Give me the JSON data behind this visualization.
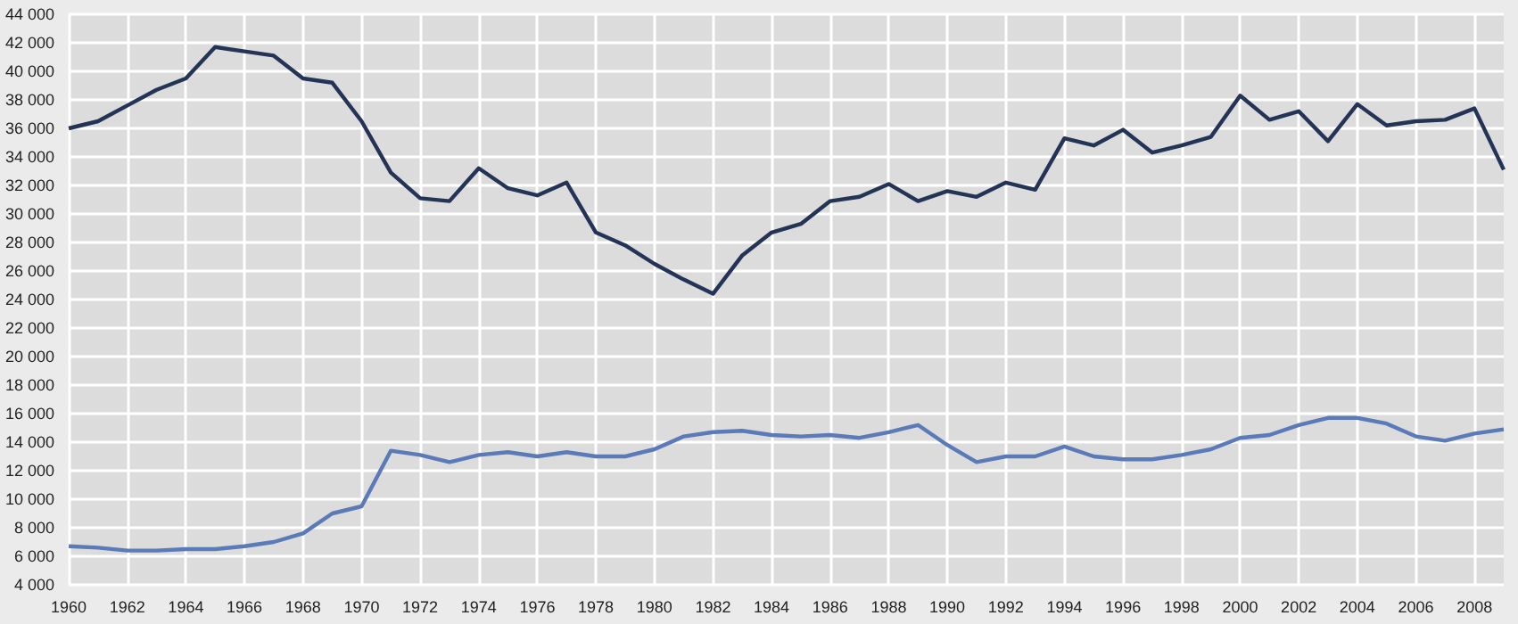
{
  "chart_data": {
    "type": "line",
    "x": [
      1960,
      1961,
      1962,
      1963,
      1964,
      1965,
      1966,
      1967,
      1968,
      1969,
      1970,
      1971,
      1972,
      1973,
      1974,
      1975,
      1976,
      1977,
      1978,
      1979,
      1980,
      1981,
      1982,
      1983,
      1984,
      1985,
      1986,
      1987,
      1988,
      1989,
      1990,
      1991,
      1992,
      1993,
      1994,
      1995,
      1996,
      1997,
      1998,
      1999,
      2000,
      2001,
      2002,
      2003,
      2004,
      2005,
      2006,
      2007,
      2008,
      2009
    ],
    "series": [
      {
        "color": "#243456",
        "values": [
          36000,
          36500,
          37600,
          38700,
          39500,
          41700,
          41400,
          41100,
          39500,
          39200,
          36500,
          32900,
          31100,
          30900,
          33200,
          31800,
          31300,
          32200,
          28700,
          27800,
          26500,
          25400,
          24400,
          27100,
          28700,
          29300,
          30900,
          31200,
          32100,
          30900,
          31600,
          31200,
          32200,
          31700,
          35300,
          34800,
          35900,
          34300,
          34800,
          35400,
          38300,
          36600,
          37200,
          35100,
          37700,
          36200,
          36500,
          36600,
          37400,
          33100
        ]
      },
      {
        "color": "#5b7ab8",
        "values": [
          6700,
          6600,
          6400,
          6400,
          6500,
          6500,
          6700,
          7000,
          7600,
          9000,
          9500,
          13400,
          13100,
          12600,
          13100,
          13300,
          13000,
          13300,
          13000,
          13000,
          13500,
          14400,
          14700,
          14800,
          14500,
          14400,
          14500,
          14300,
          14700,
          15200,
          13800,
          12600,
          13000,
          13000,
          13700,
          13000,
          12800,
          12800,
          13100,
          13500,
          14300,
          14500,
          15200,
          15700,
          15700,
          15300,
          14400,
          14100,
          14600,
          14900
        ]
      }
    ],
    "xlim": [
      1960,
      2009
    ],
    "xticks": [
      1960,
      1962,
      1964,
      1966,
      1968,
      1970,
      1972,
      1974,
      1976,
      1978,
      1980,
      1982,
      1984,
      1986,
      1988,
      1990,
      1992,
      1994,
      1996,
      1998,
      2000,
      2002,
      2004,
      2006,
      2008
    ],
    "ylim": [
      4000,
      44000
    ],
    "yticks": [
      {
        "value": 4000,
        "label": "4 000"
      },
      {
        "value": 6000,
        "label": "6 000"
      },
      {
        "value": 8000,
        "label": "8 000"
      },
      {
        "value": 10000,
        "label": "10 000"
      },
      {
        "value": 12000,
        "label": "12 000"
      },
      {
        "value": 14000,
        "label": "14 000"
      },
      {
        "value": 16000,
        "label": "16 000"
      },
      {
        "value": 18000,
        "label": "18 000"
      },
      {
        "value": 20000,
        "label": "20 000"
      },
      {
        "value": 22000,
        "label": "22 000"
      },
      {
        "value": 24000,
        "label": "24 000"
      },
      {
        "value": 26000,
        "label": "26 000"
      },
      {
        "value": 28000,
        "label": "28 000"
      },
      {
        "value": 30000,
        "label": "30 000"
      },
      {
        "value": 32000,
        "label": "32 000"
      },
      {
        "value": 34000,
        "label": "34 000"
      },
      {
        "value": 36000,
        "label": "36 000"
      },
      {
        "value": 38000,
        "label": "38 000"
      },
      {
        "value": 40000,
        "label": "40 000"
      },
      {
        "value": 42000,
        "label": "42 000"
      },
      {
        "value": 44000,
        "label": "44 000"
      }
    ],
    "grid": true,
    "marker": "none",
    "line_style": "solid"
  }
}
